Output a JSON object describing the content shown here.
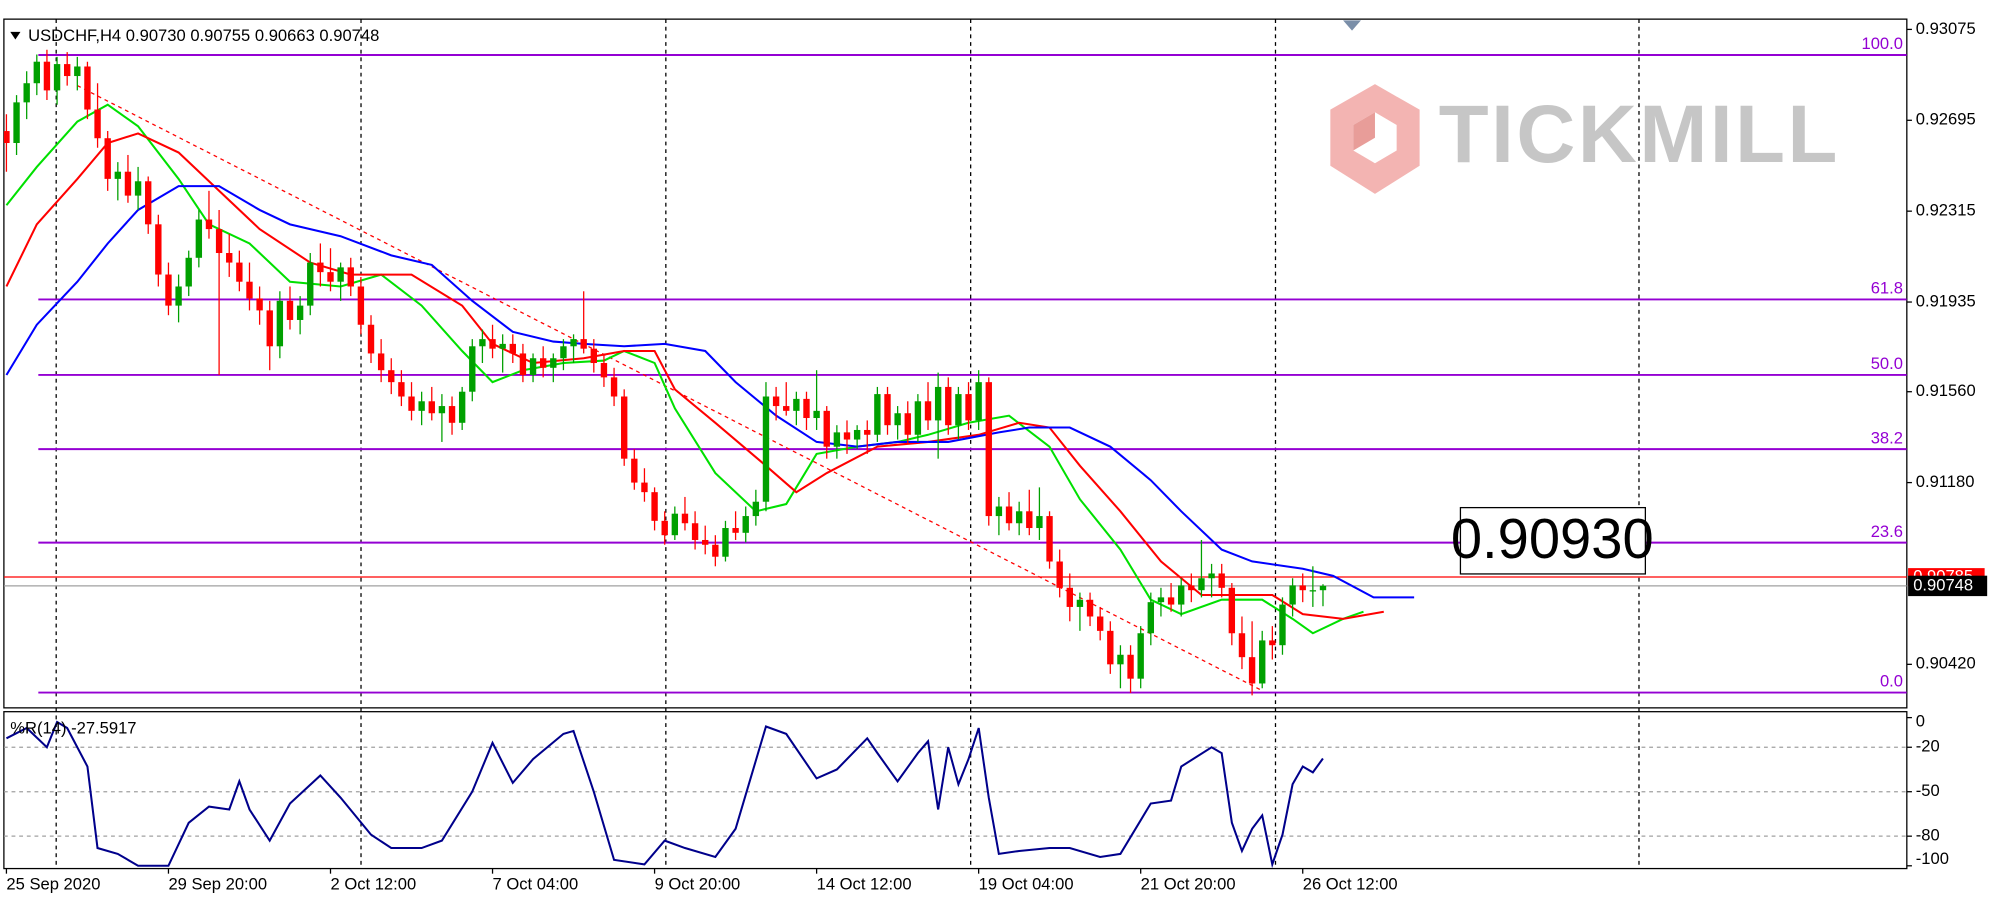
{
  "chart_data": {
    "type": "candlestick",
    "header": {
      "symbol": "USDCHF,H4"
    },
    "last_bar_labels": [
      "0.90730",
      "0.90755",
      "0.90663",
      "0.90748"
    ],
    "colors": {
      "up": "#00a000",
      "down": "#ff0000"
    },
    "ylim": [
      0.90238,
      0.93118
    ],
    "yticks": [
      0.93075,
      0.92695,
      0.92315,
      0.91935,
      {
        "value": 0.9156,
        "label": "0.91560"
      },
      {
        "value": 0.9118,
        "label": "0.91180"
      },
      {
        "value": 0.9042,
        "label": "0.90420"
      }
    ],
    "xlim": [
      -0.25,
      187.65
    ],
    "xticks": [
      {
        "value": 0,
        "label": "25 Sep 2020"
      },
      {
        "value": 16,
        "label": "29 Sep 20:00"
      },
      {
        "value": 32,
        "label": "2 Oct 12:00"
      },
      {
        "value": 48,
        "label": "7 Oct 04:00"
      },
      {
        "value": 64,
        "label": "9 Oct 20:00"
      },
      {
        "value": 80,
        "label": "14 Oct 12:00"
      },
      {
        "value": 96,
        "label": "19 Oct 04:00"
      },
      {
        "value": 112,
        "label": "21 Oct 20:00"
      },
      {
        "value": 128,
        "label": "26 Oct 12:00"
      }
    ],
    "ohlc": [
      [
        0.9265,
        0.9272,
        0.9248,
        0.926
      ],
      [
        0.926,
        0.928,
        0.9255,
        0.9277
      ],
      [
        0.9277,
        0.929,
        0.927,
        0.9285
      ],
      [
        0.9285,
        0.9297,
        0.928,
        0.9294
      ],
      [
        0.9294,
        0.9299,
        0.9278,
        0.9282
      ],
      [
        0.9282,
        0.9296,
        0.9276,
        0.9293
      ],
      [
        0.9293,
        0.9298,
        0.9284,
        0.9288
      ],
      [
        0.9288,
        0.9296,
        0.9282,
        0.9292
      ],
      [
        0.9292,
        0.9294,
        0.927,
        0.9274
      ],
      [
        0.9274,
        0.9285,
        0.9258,
        0.9262
      ],
      [
        0.9262,
        0.9265,
        0.924,
        0.9245
      ],
      [
        0.9245,
        0.9252,
        0.9236,
        0.9248
      ],
      [
        0.9248,
        0.9255,
        0.9235,
        0.9238
      ],
      [
        0.9238,
        0.925,
        0.9232,
        0.9244
      ],
      [
        0.9244,
        0.9246,
        0.9222,
        0.9226
      ],
      [
        0.9226,
        0.923,
        0.92,
        0.9205
      ],
      [
        0.9205,
        0.921,
        0.9188,
        0.9192
      ],
      [
        0.9192,
        0.9205,
        0.9185,
        0.92
      ],
      [
        0.92,
        0.9215,
        0.9196,
        0.9212
      ],
      [
        0.9212,
        0.9232,
        0.9208,
        0.9228
      ],
      [
        0.9228,
        0.924,
        0.922,
        0.9224
      ],
      [
        0.9224,
        0.9232,
        0.9163,
        0.9214
      ],
      [
        0.9214,
        0.9222,
        0.9204,
        0.921
      ],
      [
        0.921,
        0.9215,
        0.9198,
        0.9202
      ],
      [
        0.9202,
        0.921,
        0.919,
        0.9195
      ],
      [
        0.9195,
        0.92,
        0.9184,
        0.919
      ],
      [
        0.919,
        0.9194,
        0.9165,
        0.9175
      ],
      [
        0.9175,
        0.9198,
        0.917,
        0.9194
      ],
      [
        0.9194,
        0.92,
        0.9182,
        0.9186
      ],
      [
        0.9186,
        0.9196,
        0.918,
        0.9192
      ],
      [
        0.9192,
        0.9214,
        0.9188,
        0.921
      ],
      [
        0.921,
        0.9218,
        0.92,
        0.9206
      ],
      [
        0.9206,
        0.9216,
        0.9198,
        0.9202
      ],
      [
        0.9202,
        0.921,
        0.9194,
        0.9208
      ],
      [
        0.9208,
        0.9212,
        0.9196,
        0.92
      ],
      [
        0.92,
        0.9204,
        0.918,
        0.9184
      ],
      [
        0.9184,
        0.9188,
        0.9168,
        0.9172
      ],
      [
        0.9172,
        0.9178,
        0.916,
        0.9165
      ],
      [
        0.9165,
        0.917,
        0.9155,
        0.916
      ],
      [
        0.916,
        0.9165,
        0.915,
        0.9154
      ],
      [
        0.9154,
        0.916,
        0.9144,
        0.9148
      ],
      [
        0.9148,
        0.9156,
        0.9142,
        0.9152
      ],
      [
        0.9152,
        0.9158,
        0.9144,
        0.9147
      ],
      [
        0.9147,
        0.9155,
        0.9135,
        0.915
      ],
      [
        0.915,
        0.9154,
        0.9138,
        0.9143
      ],
      [
        0.9143,
        0.9158,
        0.914,
        0.9156
      ],
      [
        0.9156,
        0.9178,
        0.9152,
        0.9175
      ],
      [
        0.9175,
        0.9182,
        0.9168,
        0.9178
      ],
      [
        0.9178,
        0.9184,
        0.917,
        0.9174
      ],
      [
        0.9174,
        0.918,
        0.9164,
        0.9176
      ],
      [
        0.9176,
        0.918,
        0.9168,
        0.9172
      ],
      [
        0.9172,
        0.9176,
        0.916,
        0.9163
      ],
      [
        0.9163,
        0.9172,
        0.916,
        0.917
      ],
      [
        0.917,
        0.9175,
        0.9162,
        0.9166
      ],
      [
        0.9166,
        0.9172,
        0.916,
        0.917
      ],
      [
        0.917,
        0.9178,
        0.9165,
        0.9175
      ],
      [
        0.9175,
        0.918,
        0.9168,
        0.9178
      ],
      [
        0.9178,
        0.9198,
        0.9172,
        0.9174
      ],
      [
        0.9174,
        0.9178,
        0.9164,
        0.9168
      ],
      [
        0.9168,
        0.9172,
        0.9158,
        0.9162
      ],
      [
        0.9162,
        0.9166,
        0.915,
        0.9154
      ],
      [
        0.9154,
        0.9157,
        0.9125,
        0.9128
      ],
      [
        0.9128,
        0.9132,
        0.9115,
        0.9118
      ],
      [
        0.9118,
        0.9124,
        0.911,
        0.9114
      ],
      [
        0.9114,
        0.9116,
        0.9098,
        0.9102
      ],
      [
        0.9102,
        0.9106,
        0.9092,
        0.9096
      ],
      [
        0.9096,
        0.9108,
        0.9094,
        0.9105
      ],
      [
        0.9105,
        0.9112,
        0.9098,
        0.9101
      ],
      [
        0.9101,
        0.9106,
        0.909,
        0.9094
      ],
      [
        0.9094,
        0.91,
        0.9088,
        0.9092
      ],
      [
        0.9092,
        0.9096,
        0.9083,
        0.9087
      ],
      [
        0.9087,
        0.9102,
        0.9085,
        0.9099
      ],
      [
        0.9099,
        0.9106,
        0.9094,
        0.9097
      ],
      [
        0.9097,
        0.9108,
        0.9093,
        0.9104
      ],
      [
        0.9104,
        0.9115,
        0.91,
        0.911
      ],
      [
        0.911,
        0.916,
        0.9106,
        0.9154
      ],
      [
        0.9154,
        0.9158,
        0.9144,
        0.915
      ],
      [
        0.915,
        0.916,
        0.9146,
        0.9148
      ],
      [
        0.9148,
        0.9156,
        0.9142,
        0.9153
      ],
      [
        0.9153,
        0.9156,
        0.914,
        0.9145
      ],
      [
        0.9145,
        0.9165,
        0.914,
        0.9148
      ],
      [
        0.9148,
        0.915,
        0.9128,
        0.9133
      ],
      [
        0.9133,
        0.9142,
        0.9128,
        0.9139
      ],
      [
        0.9139,
        0.9144,
        0.913,
        0.9136
      ],
      [
        0.9136,
        0.9142,
        0.9132,
        0.914
      ],
      [
        0.914,
        0.9144,
        0.913,
        0.9138
      ],
      [
        0.9138,
        0.9158,
        0.9135,
        0.9155
      ],
      [
        0.9155,
        0.9158,
        0.9138,
        0.9142
      ],
      [
        0.9142,
        0.915,
        0.9136,
        0.9147
      ],
      [
        0.9147,
        0.9152,
        0.9134,
        0.9138
      ],
      [
        0.9138,
        0.9155,
        0.9135,
        0.9152
      ],
      [
        0.9152,
        0.916,
        0.914,
        0.9144
      ],
      [
        0.9144,
        0.9164,
        0.9128,
        0.9158
      ],
      [
        0.9158,
        0.9162,
        0.9138,
        0.9142
      ],
      [
        0.9142,
        0.9158,
        0.9136,
        0.9155
      ],
      [
        0.9155,
        0.916,
        0.914,
        0.9144
      ],
      [
        0.9144,
        0.9165,
        0.914,
        0.916
      ],
      [
        0.916,
        0.9162,
        0.91,
        0.9104
      ],
      [
        0.9104,
        0.9112,
        0.9096,
        0.9108
      ],
      [
        0.9108,
        0.9114,
        0.9098,
        0.9101
      ],
      [
        0.9101,
        0.911,
        0.9096,
        0.9106
      ],
      [
        0.9106,
        0.9115,
        0.9096,
        0.9099
      ],
      [
        0.9099,
        0.9116,
        0.9094,
        0.9104
      ],
      [
        0.9104,
        0.9106,
        0.9082,
        0.9085
      ],
      [
        0.9085,
        0.909,
        0.907,
        0.9074
      ],
      [
        0.9074,
        0.908,
        0.906,
        0.9066
      ],
      [
        0.9066,
        0.9072,
        0.9056,
        0.9069
      ],
      [
        0.9069,
        0.9072,
        0.9058,
        0.9062
      ],
      [
        0.9062,
        0.9066,
        0.9052,
        0.9056
      ],
      [
        0.9056,
        0.906,
        0.9038,
        0.9042
      ],
      [
        0.9042,
        0.905,
        0.9032,
        0.9046
      ],
      [
        0.9046,
        0.905,
        0.903,
        0.9036
      ],
      [
        0.9036,
        0.9058,
        0.9032,
        0.9055
      ],
      [
        0.9055,
        0.9072,
        0.905,
        0.9068
      ],
      [
        0.9068,
        0.9074,
        0.9062,
        0.907
      ],
      [
        0.907,
        0.9076,
        0.9064,
        0.9067
      ],
      [
        0.9067,
        0.9078,
        0.9062,
        0.9075
      ],
      [
        0.9075,
        0.908,
        0.9068,
        0.9073
      ],
      [
        0.9073,
        0.9094,
        0.907,
        0.9078
      ],
      [
        0.9078,
        0.9084,
        0.907,
        0.908
      ],
      [
        0.908,
        0.9084,
        0.907,
        0.9074
      ],
      [
        0.9074,
        0.9076,
        0.905,
        0.9055
      ],
      [
        0.9055,
        0.9062,
        0.904,
        0.9045
      ],
      [
        0.9045,
        0.906,
        0.9029,
        0.9034
      ],
      [
        0.9034,
        0.9056,
        0.9032,
        0.9052
      ],
      [
        0.9052,
        0.9058,
        0.9044,
        0.905
      ],
      [
        0.905,
        0.907,
        0.9046,
        0.9067
      ],
      [
        0.9067,
        0.9078,
        0.9062,
        0.9075
      ],
      [
        0.9075,
        0.908,
        0.9068,
        0.9073
      ],
      [
        0.9073,
        0.9083,
        0.9066,
        0.9073
      ],
      [
        0.9073,
        0.90755,
        0.90663,
        0.90748
      ]
    ],
    "moving_averages": [
      {
        "color": "#00e000",
        "x": [
          0,
          3,
          7,
          10,
          13,
          17,
          20,
          24,
          28,
          33,
          37,
          41,
          45,
          48,
          51,
          55,
          59,
          61,
          64,
          66,
          70,
          74,
          77,
          80,
          84,
          88,
          91,
          95,
          99,
          103,
          106,
          110,
          113,
          116,
          120,
          124,
          127,
          129,
          132,
          134
        ],
        "values": [
          0.9234,
          0.925,
          0.9269,
          0.9276,
          0.9267,
          0.9245,
          0.9226,
          0.9218,
          0.9202,
          0.92,
          0.9205,
          0.9192,
          0.9173,
          0.916,
          0.9165,
          0.9168,
          0.9169,
          0.9173,
          0.9168,
          0.9149,
          0.9122,
          0.9106,
          0.9109,
          0.913,
          0.9133,
          0.9135,
          0.9138,
          0.9143,
          0.9146,
          0.9133,
          0.9111,
          0.909,
          0.9069,
          0.9063,
          0.9069,
          0.9069,
          0.9061,
          0.9055,
          0.9061,
          0.9064
        ]
      },
      {
        "color": "#ff0000",
        "x": [
          0,
          3,
          7,
          10,
          13,
          17,
          21,
          25,
          30,
          34,
          40,
          45,
          48,
          52,
          57,
          61,
          64,
          66,
          70,
          75,
          78,
          81,
          86,
          91,
          96,
          100,
          103,
          106,
          110,
          114,
          118,
          122,
          125,
          128,
          132,
          136
        ],
        "values": [
          0.92,
          0.9226,
          0.9245,
          0.926,
          0.9264,
          0.9256,
          0.924,
          0.9224,
          0.921,
          0.9205,
          0.9205,
          0.9192,
          0.9176,
          0.9168,
          0.917,
          0.9173,
          0.9173,
          0.9157,
          0.9143,
          0.9125,
          0.9114,
          0.9122,
          0.9133,
          0.9135,
          0.9138,
          0.9143,
          0.9141,
          0.9125,
          0.9106,
          0.9085,
          0.9071,
          0.9071,
          0.9071,
          0.9063,
          0.9061,
          0.9064
        ]
      },
      {
        "color": "#0000ff",
        "x": [
          0,
          3,
          7,
          10,
          13,
          17,
          21,
          25,
          28,
          33,
          38,
          42,
          46,
          50,
          54,
          57,
          61,
          65,
          69,
          72,
          76,
          80,
          84,
          88,
          93,
          98,
          101,
          105,
          109,
          113,
          116,
          120,
          123,
          128,
          131,
          135,
          139
        ],
        "values": [
          0.9163,
          0.9184,
          0.9202,
          0.9218,
          0.9232,
          0.9242,
          0.9242,
          0.9232,
          0.9226,
          0.9221,
          0.9213,
          0.9209,
          0.9194,
          0.9181,
          0.9177,
          0.9176,
          0.9175,
          0.9176,
          0.9173,
          0.916,
          0.9146,
          0.9135,
          0.9133,
          0.9135,
          0.9135,
          0.9139,
          0.9141,
          0.9141,
          0.9133,
          0.9119,
          0.9106,
          0.909,
          0.9085,
          0.9082,
          0.9079,
          0.907,
          0.907
        ]
      }
    ],
    "trendline": {
      "color": "#ff0000",
      "x": [
        7,
        124
      ],
      "values": [
        0.9284,
        0.9031
      ]
    },
    "fibonacci": {
      "color": "#9400d3",
      "levels": [
        {
          "value": 0.92968,
          "label": "100.0"
        },
        {
          "value": 0.91946,
          "label": "61.8"
        },
        {
          "value": 0.9163,
          "label": "50.0"
        },
        {
          "value": 0.9132,
          "label": "38.2"
        },
        {
          "value": 0.90929,
          "label": "23.6"
        },
        {
          "value": 0.90302,
          "label": "0.0"
        }
      ]
    },
    "alert_line": {
      "value": 0.90785,
      "color": "#ff0000"
    },
    "current_price": {
      "value": 0.90748,
      "label": "0.90748"
    },
    "price_label": "0.90930",
    "watermark": "TICKMILL",
    "indicator": {
      "type": "line",
      "name": "%R(14)",
      "color": "#00008b",
      "ylim": [
        -101,
        4
      ],
      "yticks": [
        0,
        -100
      ],
      "levels": [
        -20,
        -50,
        -80
      ],
      "x": [
        0,
        2,
        4,
        5,
        6,
        8,
        9,
        11,
        13,
        16,
        18,
        20,
        22,
        23,
        24,
        26,
        28,
        31,
        33,
        36,
        38,
        41,
        43,
        46,
        48,
        50,
        52,
        55,
        56,
        58,
        60,
        63,
        65,
        67,
        70,
        72,
        75,
        77,
        80,
        82,
        85,
        86,
        88,
        90,
        91,
        92,
        93,
        94,
        95,
        96,
        97,
        98,
        100,
        103,
        105,
        108,
        110,
        113,
        115,
        116,
        119,
        120,
        121,
        122,
        123,
        124,
        125,
        126,
        127,
        128,
        129,
        130
      ],
      "values": [
        -14,
        -7,
        -20,
        -3,
        -7,
        -33,
        -88,
        -92,
        -100,
        -100,
        -71,
        -60,
        -62,
        -43,
        -62,
        -83,
        -58,
        -39,
        -54,
        -79,
        -88,
        -88,
        -83,
        -50,
        -17,
        -44,
        -28,
        -11,
        -9,
        -50,
        -96,
        -99,
        -83,
        -88,
        -94,
        -75,
        -6,
        -11,
        -41,
        -35,
        -14,
        -24,
        -43,
        -24,
        -16,
        -62,
        -20,
        -45,
        -28,
        -7,
        -54,
        -92,
        -90,
        -88,
        -88,
        -94,
        -92,
        -58,
        -56,
        -33,
        -20,
        -24,
        -71,
        -90,
        -75,
        -66,
        -99,
        -79,
        -45,
        -33,
        -37,
        -27.5917
      ]
    }
  }
}
